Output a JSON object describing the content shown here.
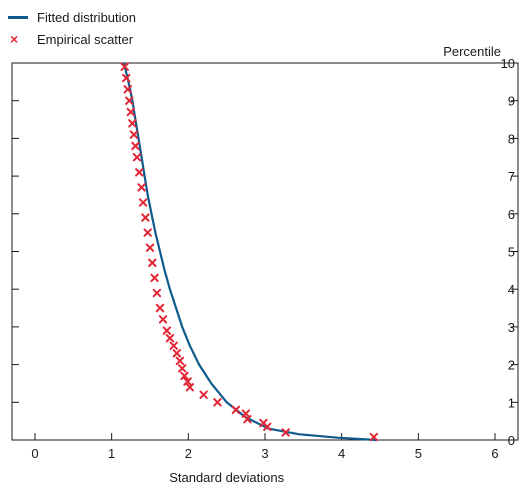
{
  "legend": {
    "fitted_label": "Fitted distribution",
    "scatter_label": "Empirical scatter"
  },
  "colors": {
    "fitted": "#0f5a8c",
    "scatter": "#e32636",
    "axis": "#1a1a1a"
  },
  "chart_data": {
    "type": "scatter",
    "title": "",
    "xlabel": "Standard deviations",
    "ylabel": "Percentile",
    "xlim": [
      -0.3,
      6.3
    ],
    "ylim": [
      0,
      10
    ],
    "xticks": [
      0,
      1,
      2,
      3,
      4,
      5,
      6
    ],
    "yticks": [
      0,
      1,
      2,
      3,
      4,
      5,
      6,
      7,
      8,
      9,
      10
    ],
    "grid": false,
    "legend_position": "top-left",
    "series": [
      {
        "name": "Fitted distribution",
        "type": "line",
        "x": [
          1.16,
          1.22,
          1.27,
          1.31,
          1.35,
          1.39,
          1.43,
          1.47,
          1.52,
          1.57,
          1.63,
          1.69,
          1.76,
          1.84,
          1.92,
          2.02,
          2.14,
          2.3,
          2.5,
          2.75,
          3.05,
          3.45,
          3.95,
          4.45
        ],
        "y": [
          10.0,
          9.5,
          9.0,
          8.5,
          8.0,
          7.5,
          7.0,
          6.5,
          6.0,
          5.5,
          5.0,
          4.5,
          4.0,
          3.5,
          3.0,
          2.5,
          2.0,
          1.5,
          1.0,
          0.6,
          0.3,
          0.15,
          0.06,
          0.0
        ]
      },
      {
        "name": "Empirical scatter",
        "type": "scatter",
        "x": [
          1.17,
          1.19,
          1.21,
          1.23,
          1.25,
          1.27,
          1.29,
          1.31,
          1.33,
          1.36,
          1.39,
          1.41,
          1.44,
          1.47,
          1.5,
          1.53,
          1.56,
          1.59,
          1.63,
          1.67,
          1.72,
          1.76,
          1.81,
          1.85,
          1.89,
          1.92,
          1.95,
          1.99,
          2.02,
          2.2,
          2.38,
          2.62,
          2.75,
          2.77,
          2.98,
          3.03,
          3.27,
          4.42
        ],
        "y": [
          9.9,
          9.6,
          9.3,
          9.0,
          8.7,
          8.4,
          8.1,
          7.8,
          7.5,
          7.1,
          6.7,
          6.3,
          5.9,
          5.5,
          5.1,
          4.7,
          4.3,
          3.9,
          3.5,
          3.2,
          2.9,
          2.7,
          2.5,
          2.3,
          2.1,
          1.9,
          1.7,
          1.55,
          1.4,
          1.2,
          1.0,
          0.8,
          0.7,
          0.55,
          0.45,
          0.35,
          0.2,
          0.08
        ]
      }
    ]
  }
}
